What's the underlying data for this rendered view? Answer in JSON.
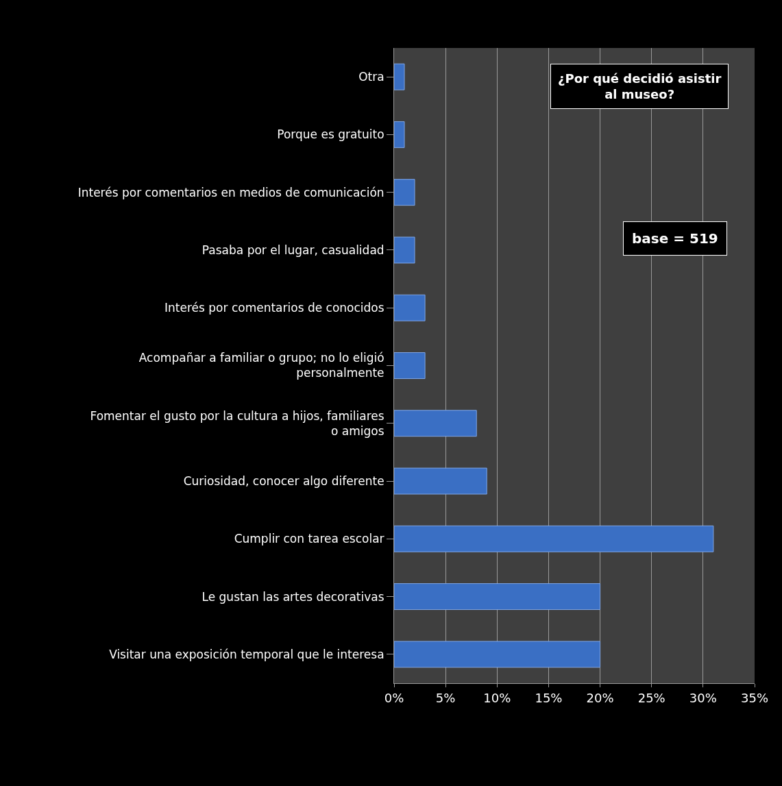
{
  "chart_data": {
    "type": "bar",
    "orientation": "horizontal",
    "title": "¿Por qué decidió asistir al museo?",
    "annotations": [
      "base = 519"
    ],
    "categories": [
      "Otra",
      "Porque es gratuito",
      "Interés por comentarios en medios de comunicación",
      "Pasaba por el lugar, casualidad",
      "Interés por comentarios de conocidos",
      "Acompañar a familiar o grupo; no lo eligió personalmente",
      "Fomentar el gusto por la cultura a hijos, familiares o amigos",
      "Curiosidad, conocer algo diferente",
      "Cumplir con tarea escolar",
      "Le gustan las artes decorativas",
      "Visitar una exposición temporal que le interesa"
    ],
    "values": [
      1,
      1,
      2,
      2,
      3,
      3,
      8,
      9,
      31,
      20,
      20
    ],
    "color": "#3a6fc4",
    "xlim": [
      0,
      35
    ],
    "xticks": [
      {
        "value": 0,
        "label": "0%"
      },
      {
        "value": 5,
        "label": "5%"
      },
      {
        "value": 10,
        "label": "10%"
      },
      {
        "value": 15,
        "label": "15%"
      },
      {
        "value": 20,
        "label": "20%"
      },
      {
        "value": 25,
        "label": "25%"
      },
      {
        "value": 30,
        "label": "30%"
      },
      {
        "value": 35,
        "label": "35%"
      }
    ],
    "grid": "x"
  }
}
